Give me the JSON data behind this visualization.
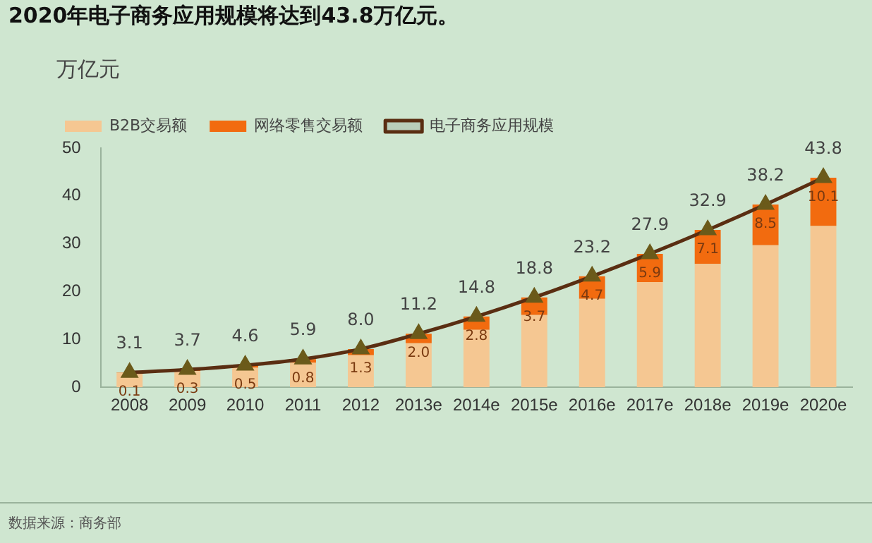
{
  "chart_data": {
    "type": "bar",
    "title": "2020年电子商务应用规模将达到43.8万亿元。",
    "ylabel": "万亿元",
    "categories": [
      "2008",
      "2009",
      "2010",
      "2011",
      "2012",
      "2013e",
      "2014e",
      "2015e",
      "2016e",
      "2017e",
      "2018e",
      "2019e",
      "2020e"
    ],
    "stacked": true,
    "ylim": [
      0,
      50
    ],
    "yticks": [
      0,
      10,
      20,
      30,
      40,
      50
    ],
    "grid": false,
    "legend": "top left",
    "series": [
      {
        "name": "B2B交易额",
        "color": "#f5c792",
        "values": [
          3.0,
          3.4,
          4.1,
          5.1,
          6.7,
          9.2,
          12.0,
          15.1,
          18.5,
          22.0,
          25.8,
          29.7,
          33.7
        ]
      },
      {
        "name": "网络零售交易额",
        "color": "#f26b0f",
        "values": [
          0.1,
          0.3,
          0.5,
          0.8,
          1.3,
          2.0,
          2.8,
          3.7,
          4.7,
          5.9,
          7.1,
          8.5,
          10.1
        ],
        "value_labels": [
          "0.1",
          "0.3",
          "0.5",
          "0.8",
          "1.3",
          "2.0",
          "2.8",
          "3.7",
          "4.7",
          "5.9",
          "7.1",
          "8.5",
          "10.1"
        ]
      },
      {
        "name": "电子商务应用规模",
        "type": "line",
        "color": "#5a2e12",
        "marker": "triangle",
        "values": [
          3.1,
          3.7,
          4.6,
          5.9,
          8.0,
          11.2,
          14.8,
          18.8,
          23.2,
          27.9,
          32.9,
          38.2,
          43.8
        ],
        "value_labels": [
          "3.1",
          "3.7",
          "4.6",
          "5.9",
          "8.0",
          "11.2",
          "14.8",
          "18.8",
          "23.2",
          "27.9",
          "32.9",
          "38.2",
          "43.8"
        ]
      }
    ],
    "annotations": [
      "数据来源：商务部"
    ]
  }
}
